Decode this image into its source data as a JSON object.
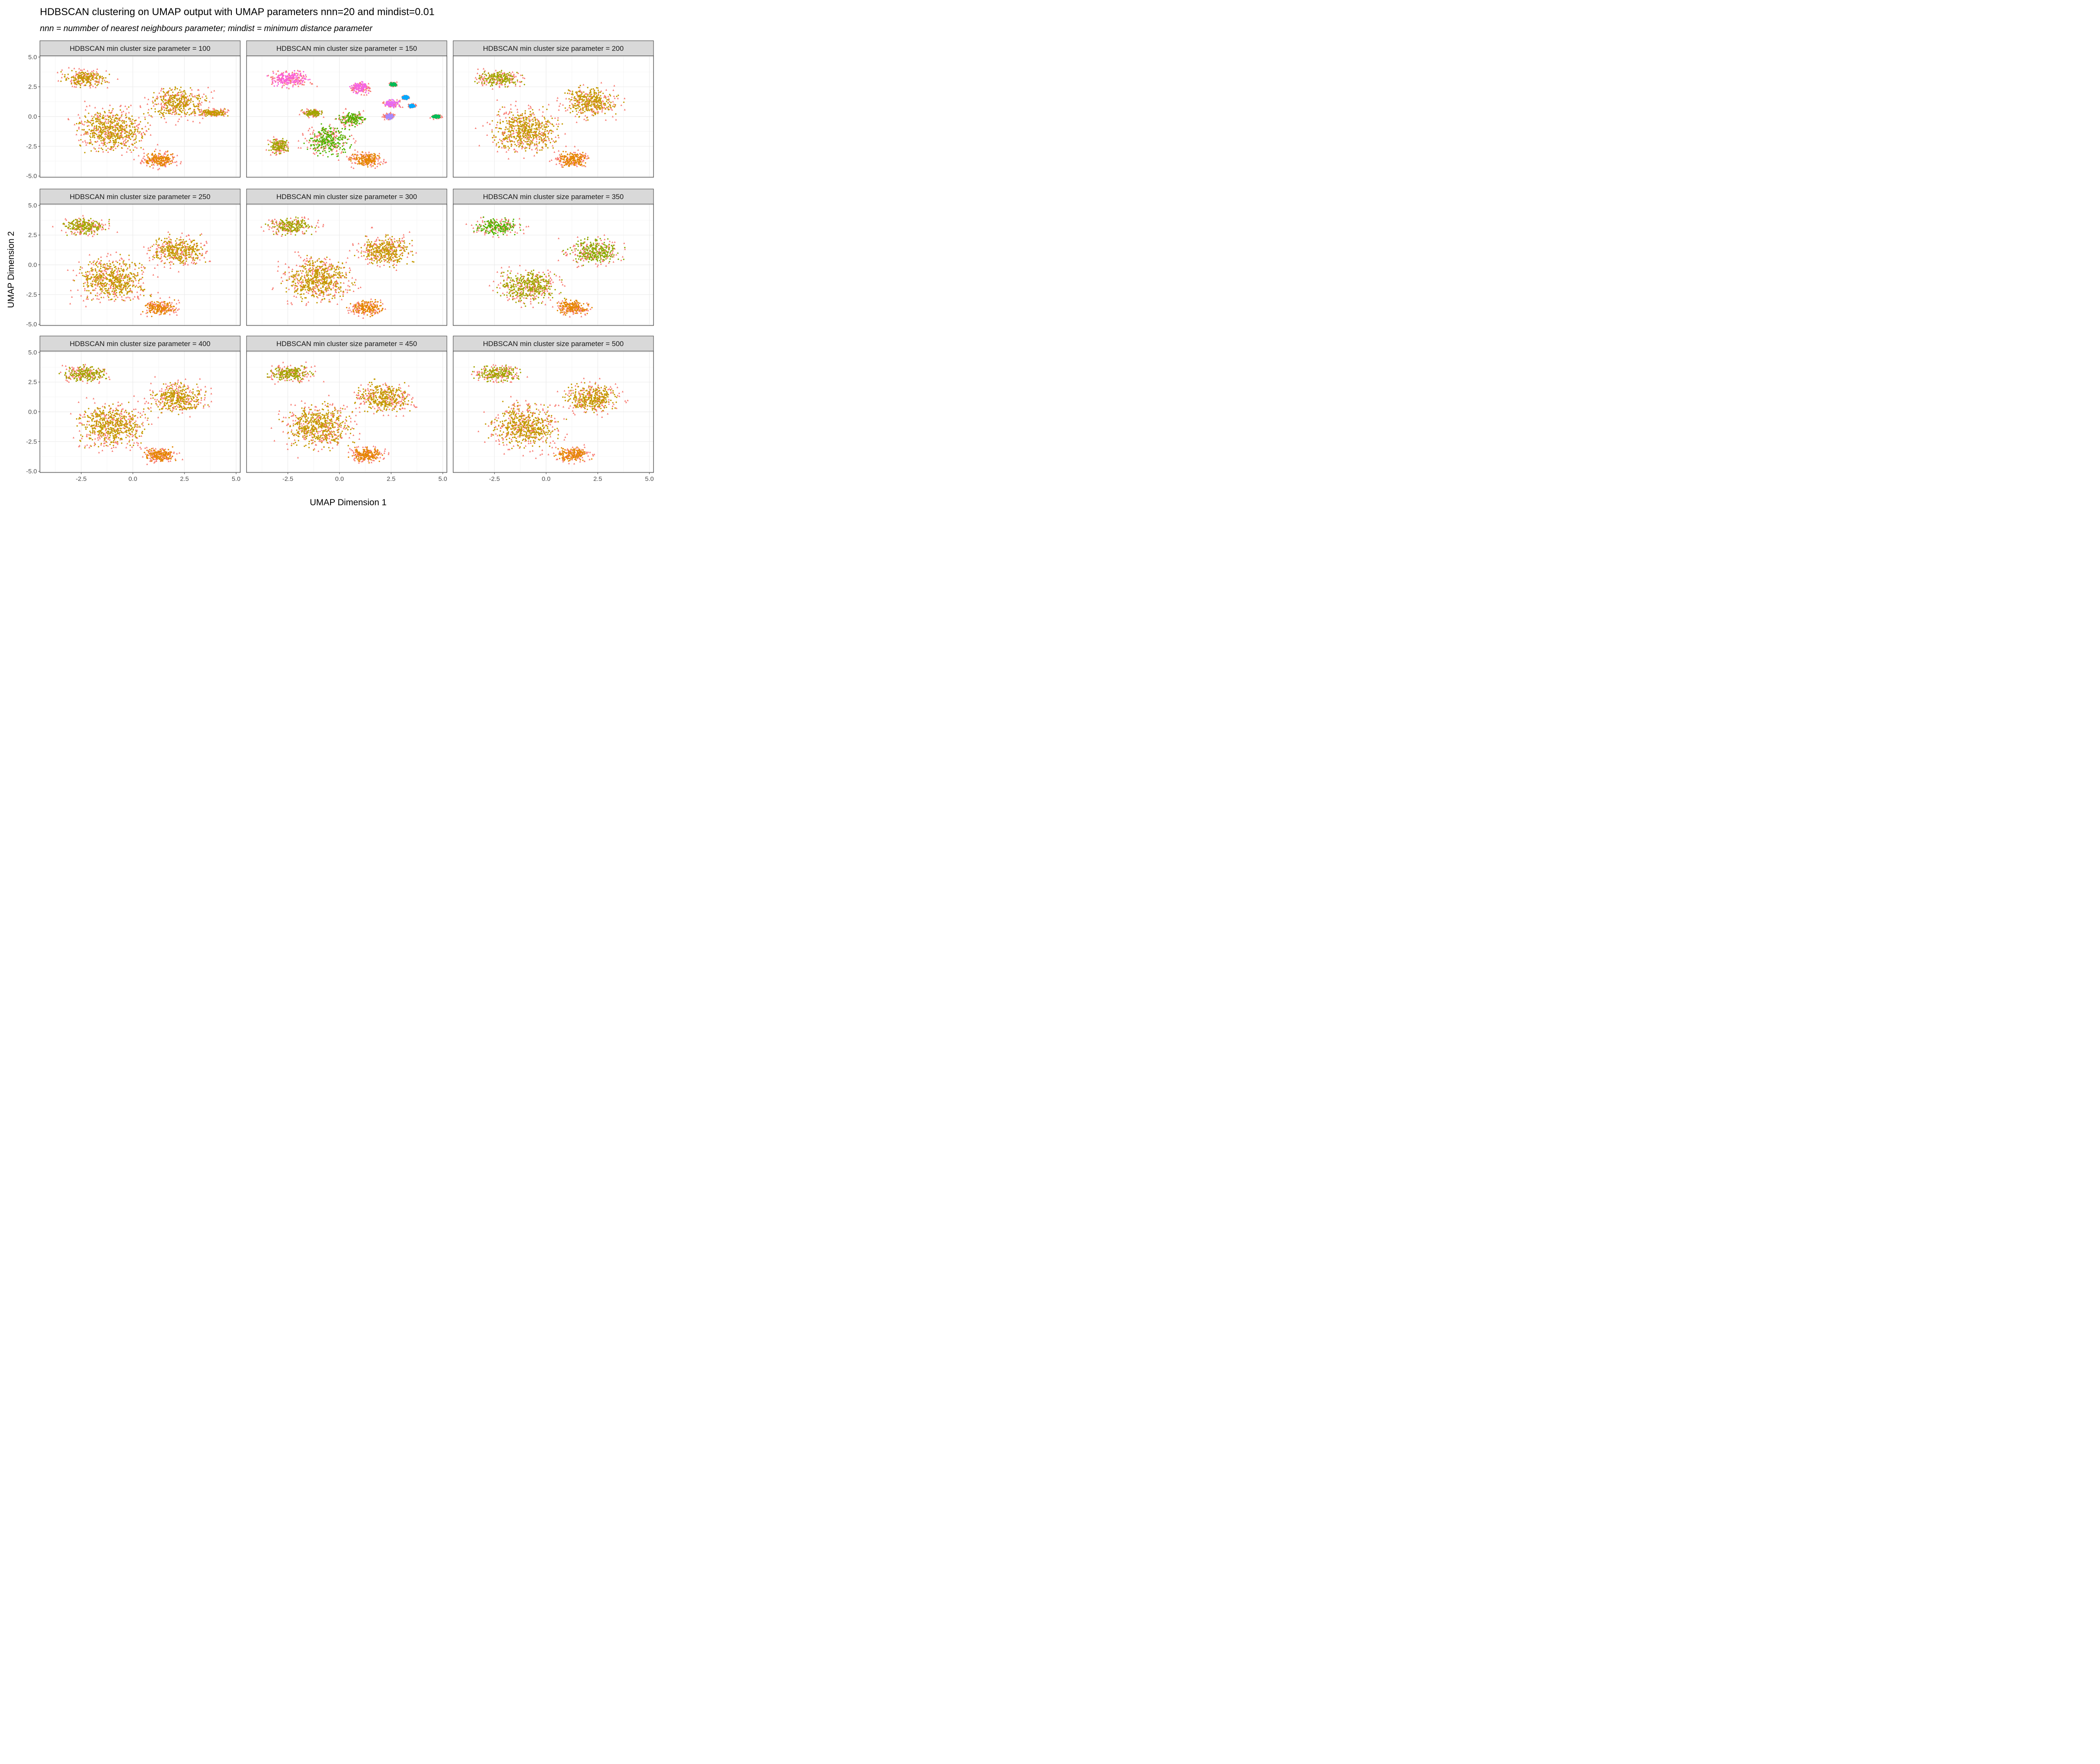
{
  "chart_data": {
    "type": "scatter",
    "layout": "faceted 3x3 grid",
    "title": "HDBSCAN clustering on UMAP output with UMAP parameters nnn=20 and mindist=0.01",
    "subtitle": "nnn = nummber of nearest neighbours parameter; mindist = minimum distance parameter",
    "xlabel": "UMAP Dimension 1",
    "ylabel": "UMAP Dimension 2",
    "xlim": [
      -4.5,
      5.2
    ],
    "ylim": [
      -5.1,
      5.1
    ],
    "x_ticks": [
      -2.5,
      0.0,
      2.5,
      5.0
    ],
    "x_tick_labels": [
      "-2.5",
      "0.0",
      "2.5",
      "5.0"
    ],
    "y_ticks": [
      5.0,
      2.5,
      0.0,
      -2.5,
      -5.0
    ],
    "y_tick_labels": [
      "5.0",
      "2.5",
      "0.0",
      "-2.5",
      "-5.0"
    ],
    "grid": true,
    "legend": "none",
    "noise_color": "#f8766d",
    "panels": [
      {
        "strip": "HDBSCAN min cluster size parameter = 100",
        "clusters": [
          {
            "color": "#c49a00",
            "blobs": [
              [
                -2.3,
                3.2,
                1.4,
                0.9
              ],
              [
                2.2,
                1.2,
                1.7,
                1.6
              ],
              [
                -1.0,
                -1.2,
                2.1,
                2.3
              ],
              [
                3.9,
                0.3,
                0.9,
                0.4
              ]
            ]
          },
          {
            "color": "#e58700",
            "blobs": [
              [
                1.3,
                -3.6,
                1.0,
                0.8
              ]
            ]
          }
        ]
      },
      {
        "strip": "HDBSCAN min cluster size parameter = 150",
        "clusters": [
          {
            "color": "#fb61d7",
            "blobs": [
              [
                -2.4,
                3.2,
                1.2,
                0.9
              ]
            ]
          },
          {
            "color": "#f564e3",
            "blobs": [
              [
                1.0,
                2.4,
                0.6,
                0.6
              ]
            ]
          },
          {
            "color": "#e76bf3",
            "blobs": [
              [
                2.5,
                1.1,
                0.5,
                0.4
              ]
            ]
          },
          {
            "color": "#a58aff",
            "blobs": [
              [
                2.4,
                0.0,
                0.3,
                0.3
              ]
            ]
          },
          {
            "color": "#00bc56",
            "blobs": [
              [
                2.6,
                2.7,
                0.2,
                0.2
              ],
              [
                4.7,
                0.0,
                0.3,
                0.2
              ]
            ]
          },
          {
            "color": "#00a9ff",
            "blobs": [
              [
                3.2,
                1.6,
                0.2,
                0.2
              ],
              [
                3.5,
                0.9,
                0.2,
                0.2
              ]
            ]
          },
          {
            "color": "#53b400",
            "blobs": [
              [
                -0.5,
                -2.0,
                1.4,
                1.6
              ],
              [
                0.6,
                -0.2,
                0.8,
                0.7
              ]
            ]
          },
          {
            "color": "#a3a500",
            "blobs": [
              [
                -2.9,
                -2.5,
                0.6,
                0.8
              ],
              [
                -1.3,
                0.3,
                0.6,
                0.4
              ]
            ]
          },
          {
            "color": "#e58700",
            "blobs": [
              [
                1.3,
                -3.6,
                1.0,
                0.8
              ]
            ]
          }
        ]
      },
      {
        "strip": "HDBSCAN min cluster size parameter = 200",
        "clusters": [
          {
            "color": "#a3a500",
            "blobs": [
              [
                -2.3,
                3.2,
                1.4,
                0.9
              ]
            ]
          },
          {
            "color": "#c49a00",
            "blobs": [
              [
                2.2,
                1.2,
                1.7,
                1.6
              ],
              [
                -1.0,
                -1.2,
                2.1,
                2.3
              ]
            ]
          },
          {
            "color": "#e58700",
            "blobs": [
              [
                1.3,
                -3.6,
                1.0,
                0.8
              ]
            ]
          }
        ]
      },
      {
        "strip": "HDBSCAN min cluster size parameter = 250",
        "clusters": [
          {
            "color": "#a3a500",
            "blobs": [
              [
                -2.3,
                3.2,
                1.4,
                0.9
              ]
            ]
          },
          {
            "color": "#c49a00",
            "blobs": [
              [
                2.2,
                1.2,
                1.7,
                1.6
              ],
              [
                -1.0,
                -1.2,
                2.1,
                2.3
              ]
            ]
          },
          {
            "color": "#e58700",
            "blobs": [
              [
                1.3,
                -3.6,
                1.0,
                0.8
              ]
            ]
          }
        ]
      },
      {
        "strip": "HDBSCAN min cluster size parameter = 300",
        "clusters": [
          {
            "color": "#a3a500",
            "blobs": [
              [
                -2.3,
                3.2,
                1.4,
                0.9
              ]
            ]
          },
          {
            "color": "#c49a00",
            "blobs": [
              [
                2.2,
                1.2,
                1.7,
                1.6
              ],
              [
                -1.0,
                -1.2,
                2.1,
                2.3
              ]
            ]
          },
          {
            "color": "#e58700",
            "blobs": [
              [
                1.3,
                -3.6,
                1.0,
                0.8
              ]
            ]
          }
        ]
      },
      {
        "strip": "HDBSCAN min cluster size parameter = 350",
        "clusters": [
          {
            "color": "#53b400",
            "blobs": [
              [
                -2.3,
                3.2,
                1.4,
                0.9
              ]
            ]
          },
          {
            "color": "#8aab00",
            "blobs": [
              [
                2.3,
                1.1,
                1.6,
                1.4
              ]
            ]
          },
          {
            "color": "#a3a500",
            "blobs": [
              [
                -0.8,
                -1.8,
                1.9,
                1.8
              ]
            ]
          },
          {
            "color": "#e58700",
            "blobs": [
              [
                1.3,
                -3.6,
                1.0,
                0.8
              ]
            ]
          }
        ]
      },
      {
        "strip": "HDBSCAN min cluster size parameter = 400",
        "clusters": [
          {
            "color": "#a3a500",
            "blobs": [
              [
                -2.3,
                3.2,
                1.4,
                0.9
              ]
            ]
          },
          {
            "color": "#c49a00",
            "blobs": [
              [
                2.2,
                1.2,
                1.7,
                1.6
              ],
              [
                -1.0,
                -1.2,
                2.1,
                2.3
              ]
            ]
          },
          {
            "color": "#e58700",
            "blobs": [
              [
                1.3,
                -3.6,
                1.0,
                0.8
              ]
            ]
          }
        ]
      },
      {
        "strip": "HDBSCAN min cluster size parameter = 450",
        "clusters": [
          {
            "color": "#a3a500",
            "blobs": [
              [
                -2.3,
                3.2,
                1.4,
                0.9
              ]
            ]
          },
          {
            "color": "#c49a00",
            "blobs": [
              [
                2.2,
                1.2,
                1.7,
                1.6
              ],
              [
                -1.0,
                -1.2,
                2.1,
                2.3
              ]
            ]
          },
          {
            "color": "#e58700",
            "blobs": [
              [
                1.3,
                -3.6,
                1.0,
                0.8
              ]
            ]
          }
        ]
      },
      {
        "strip": "HDBSCAN min cluster size parameter = 500",
        "clusters": [
          {
            "color": "#a3a500",
            "blobs": [
              [
                -2.3,
                3.2,
                1.4,
                0.9
              ]
            ]
          },
          {
            "color": "#c49a00",
            "blobs": [
              [
                2.2,
                1.2,
                1.7,
                1.6
              ],
              [
                -1.0,
                -1.2,
                2.1,
                2.3
              ]
            ]
          },
          {
            "color": "#e58700",
            "blobs": [
              [
                1.3,
                -3.6,
                1.0,
                0.8
              ]
            ]
          }
        ]
      }
    ]
  }
}
